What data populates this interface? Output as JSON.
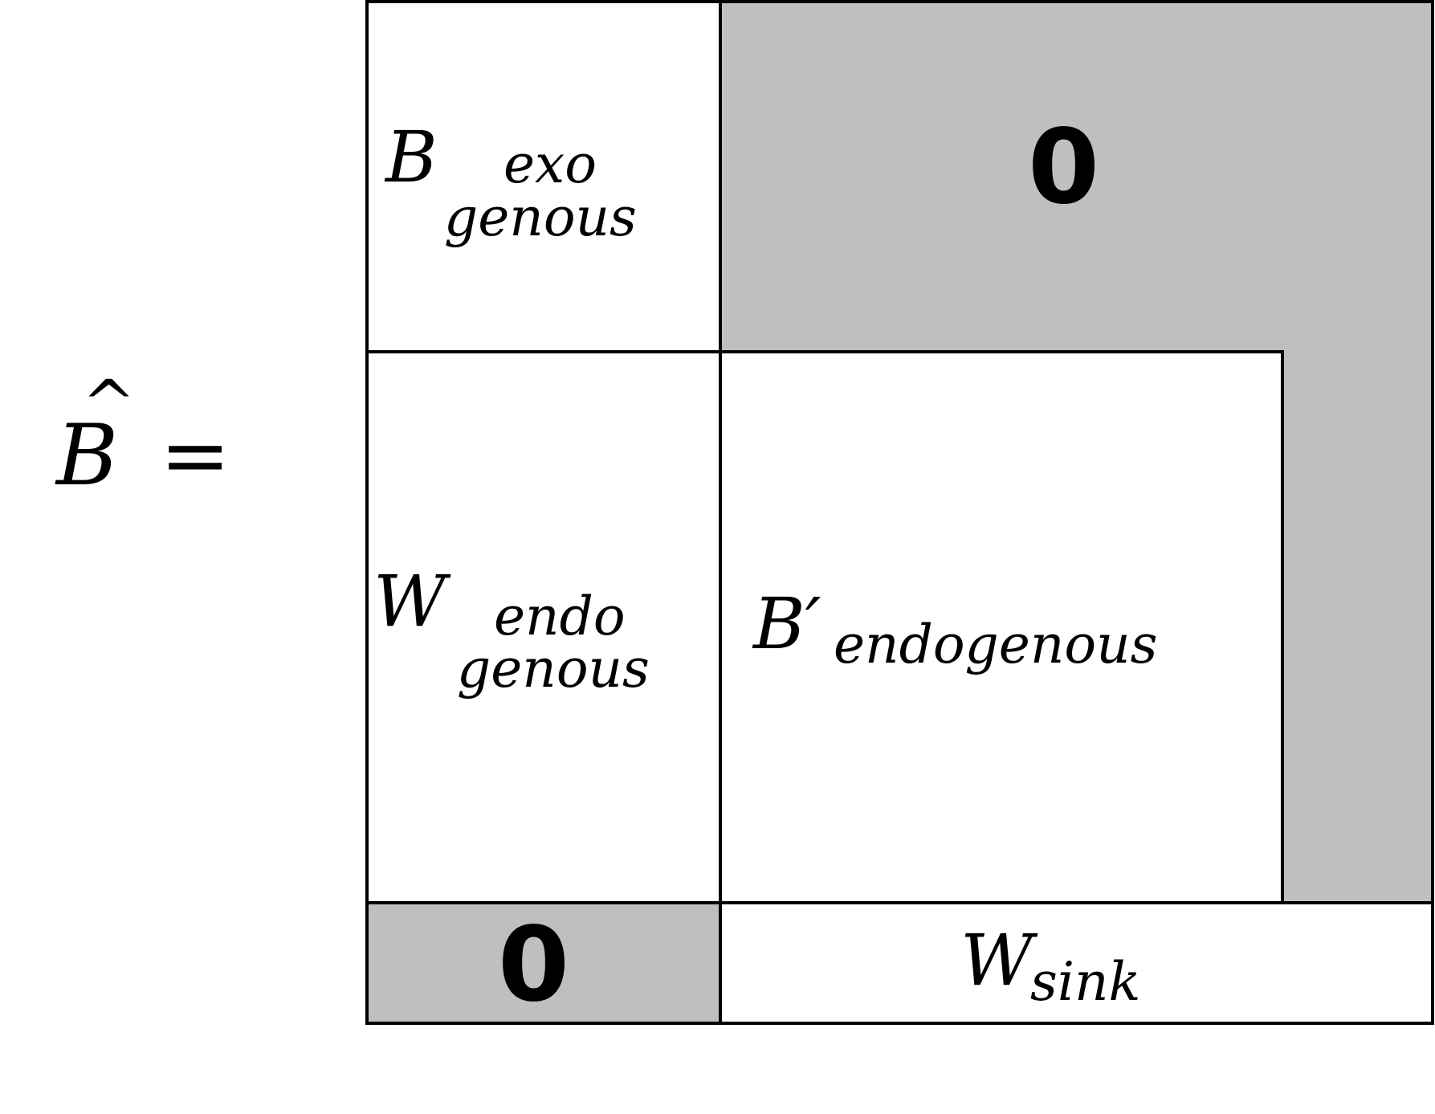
{
  "equation": {
    "symbol": "B",
    "hat": "^",
    "equals": "="
  },
  "blocks": {
    "exogenous": {
      "symbol": "B",
      "sub_top": "exo",
      "sub_bottom": "genous"
    },
    "endogenous_weights": {
      "symbol": "W",
      "sub_top": "endo",
      "sub_bottom": "genous"
    },
    "endogenous_paths": {
      "symbol": "B′",
      "subscript": "endogenous"
    },
    "sink": {
      "symbol": "W",
      "subscript": "sink"
    },
    "zero_top_right": "0",
    "zero_bottom_left": "0"
  },
  "colors": {
    "zero_fill": "#bfbfbf",
    "line": "#000000",
    "background": "#ffffff"
  }
}
